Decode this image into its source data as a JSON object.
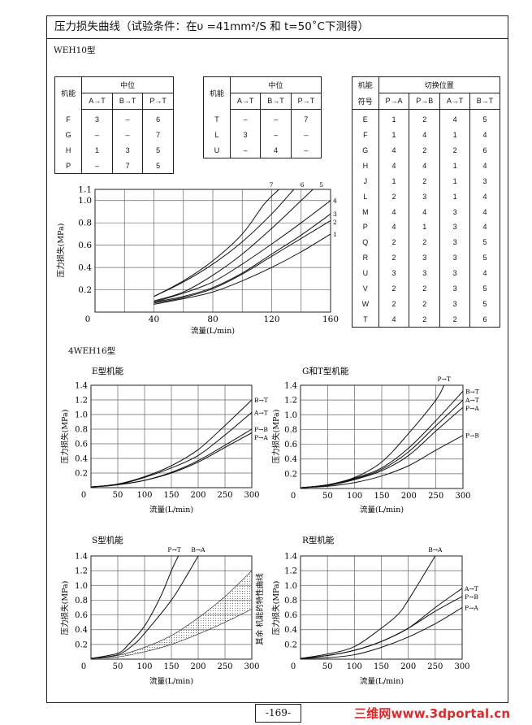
{
  "header": {
    "title": "压力损失曲线（试验条件：在υ =41mm²/S 和 t=50˚C下测得）"
  },
  "sections": {
    "weh10": "WEH10型",
    "weh16": "4WEH16型"
  },
  "table1": {
    "col_function": "机能",
    "col_group": "中位",
    "columns": [
      "A→T",
      "B→T",
      "P→T"
    ],
    "rows": [
      [
        "F",
        "3",
        "–",
        "6"
      ],
      [
        "G",
        "–",
        "–",
        "7"
      ],
      [
        "H",
        "1",
        "3",
        "5"
      ],
      [
        "P",
        "–",
        "7",
        "5"
      ]
    ]
  },
  "table2": {
    "col_function": "机能",
    "col_group": "中位",
    "columns": [
      "A→T",
      "B→T",
      "P→T"
    ],
    "rows": [
      [
        "T",
        "–",
        "–",
        "7"
      ],
      [
        "L",
        "3",
        "–",
        "–"
      ],
      [
        "U",
        "–",
        "4",
        "–"
      ]
    ]
  },
  "table3": {
    "col_function": "机能",
    "col_symbol": "符号",
    "col_group": "切换位置",
    "columns": [
      "P→A",
      "P→B",
      "A→T",
      "B→T"
    ],
    "rows": [
      [
        "E",
        "1",
        "2",
        "4",
        "5"
      ],
      [
        "F",
        "1",
        "4",
        "1",
        "4"
      ],
      [
        "G",
        "4",
        "2",
        "2",
        "6"
      ],
      [
        "H",
        "4",
        "4",
        "1",
        "4"
      ],
      [
        "J",
        "1",
        "2",
        "1",
        "3"
      ],
      [
        "L",
        "2",
        "3",
        "1",
        "4"
      ],
      [
        "M",
        "4",
        "4",
        "3",
        "4"
      ],
      [
        "P",
        "4",
        "1",
        "3",
        "4"
      ],
      [
        "Q",
        "2",
        "2",
        "3",
        "5"
      ],
      [
        "R",
        "2",
        "3",
        "3",
        "5"
      ],
      [
        "U",
        "3",
        "3",
        "3",
        "4"
      ],
      [
        "V",
        "2",
        "2",
        "3",
        "5"
      ],
      [
        "W",
        "2",
        "2",
        "3",
        "5"
      ],
      [
        "T",
        "4",
        "2",
        "2",
        "6"
      ]
    ]
  },
  "chart_data": [
    {
      "id": "weh10",
      "type": "line",
      "title": "",
      "xlabel": "流量(L/min)",
      "ylabel": "压力损失(MPa)",
      "xlim": [
        0,
        160
      ],
      "ylim": [
        0,
        1.1
      ],
      "xticks": [
        0,
        40,
        80,
        120,
        160
      ],
      "xtick_labels": [
        "0",
        "40",
        "80",
        "120",
        "160"
      ],
      "yticks": [
        0.2,
        0.4,
        0.6,
        0.8,
        1.0,
        1.1
      ],
      "ytick_labels": [
        "0.2",
        "0.4",
        "0.6",
        "0.8",
        "1.0",
        "1.1"
      ],
      "xgrid_step": 20,
      "grid": true,
      "series": [
        {
          "name": "1",
          "x": [
            40,
            60,
            80,
            100,
            120,
            140,
            160
          ],
          "y": [
            0.07,
            0.12,
            0.18,
            0.28,
            0.4,
            0.54,
            0.7
          ]
        },
        {
          "name": "2",
          "x": [
            40,
            60,
            80,
            100,
            120,
            140,
            160
          ],
          "y": [
            0.08,
            0.13,
            0.21,
            0.34,
            0.5,
            0.66,
            0.82
          ]
        },
        {
          "name": "3",
          "x": [
            40,
            60,
            80,
            100,
            120,
            140,
            160
          ],
          "y": [
            0.09,
            0.14,
            0.22,
            0.35,
            0.52,
            0.69,
            0.88
          ]
        },
        {
          "name": "4",
          "x": [
            40,
            60,
            80,
            100,
            120,
            140,
            160
          ],
          "y": [
            0.09,
            0.17,
            0.27,
            0.43,
            0.61,
            0.8,
            1.0
          ]
        },
        {
          "name": "5",
          "x": [
            40,
            60,
            80,
            100,
            120,
            140,
            148
          ],
          "y": [
            0.1,
            0.18,
            0.33,
            0.52,
            0.75,
            1.0,
            1.1
          ]
        },
        {
          "name": "6",
          "x": [
            40,
            60,
            80,
            100,
            120,
            135
          ],
          "y": [
            0.14,
            0.27,
            0.43,
            0.63,
            0.88,
            1.1
          ]
        },
        {
          "name": "7",
          "x": [
            40,
            60,
            80,
            100,
            115,
            125
          ],
          "y": [
            0.14,
            0.28,
            0.46,
            0.7,
            0.97,
            1.1
          ]
        }
      ]
    },
    {
      "id": "e",
      "type": "line",
      "title": "E型机能",
      "xlabel": "流量(L/min)",
      "ylabel": "压力损失(MPa)",
      "xlim": [
        0,
        300
      ],
      "ylim": [
        0,
        1.4
      ],
      "xticks": [
        0,
        50,
        100,
        150,
        200,
        250,
        300
      ],
      "xtick_labels": [
        "0",
        "50",
        "100",
        "150",
        "200",
        "250",
        "300"
      ],
      "yticks": [
        0.2,
        0.4,
        0.6,
        0.8,
        1.0,
        1.2,
        1.4
      ],
      "ytick_labels": [
        "0.2",
        "0.4",
        "0.6",
        "0.8",
        "1.0",
        "1.2",
        "1.4"
      ],
      "xgrid_step": 50,
      "grid": true,
      "series": [
        {
          "name": "B→T",
          "x": [
            0,
            50,
            100,
            150,
            200,
            250,
            300
          ],
          "y": [
            0.01,
            0.05,
            0.15,
            0.3,
            0.52,
            0.85,
            1.2
          ]
        },
        {
          "name": "A→T",
          "x": [
            0,
            50,
            100,
            150,
            200,
            250,
            300
          ],
          "y": [
            0.01,
            0.04,
            0.14,
            0.27,
            0.44,
            0.72,
            1.03
          ]
        },
        {
          "name": "P→B",
          "x": [
            0,
            50,
            100,
            150,
            200,
            250,
            300
          ],
          "y": [
            0.01,
            0.04,
            0.1,
            0.21,
            0.37,
            0.58,
            0.8
          ]
        },
        {
          "name": "P→A",
          "x": [
            0,
            50,
            100,
            150,
            200,
            250,
            300
          ],
          "y": [
            0.01,
            0.04,
            0.1,
            0.2,
            0.35,
            0.55,
            0.75
          ]
        }
      ]
    },
    {
      "id": "gt",
      "type": "line",
      "title": "G和T型机能",
      "xlabel": "流量(L/min)",
      "ylabel": "压力损失(MPa)",
      "xlim": [
        0,
        300
      ],
      "ylim": [
        0,
        1.4
      ],
      "xticks": [
        0,
        50,
        100,
        150,
        200,
        250,
        300
      ],
      "xtick_labels": [
        "0",
        "50",
        "100",
        "150",
        "200",
        "250",
        "300"
      ],
      "yticks": [
        0.2,
        0.4,
        0.6,
        0.8,
        1.0,
        1.2,
        1.4
      ],
      "ytick_labels": [
        "0.2",
        "0.4",
        "0.6",
        "0.8",
        "1.0",
        "1.2",
        "1.4"
      ],
      "xgrid_step": 50,
      "grid": true,
      "series": [
        {
          "name": "P→T",
          "x": [
            0,
            50,
            100,
            150,
            200,
            250,
            265
          ],
          "y": [
            0.01,
            0.05,
            0.15,
            0.36,
            0.75,
            1.2,
            1.4
          ]
        },
        {
          "name": "B→T",
          "x": [
            0,
            50,
            100,
            150,
            200,
            250,
            300
          ],
          "y": [
            0.01,
            0.05,
            0.14,
            0.28,
            0.55,
            0.92,
            1.32
          ]
        },
        {
          "name": "A→T",
          "x": [
            0,
            50,
            100,
            150,
            200,
            250,
            300
          ],
          "y": [
            0.01,
            0.05,
            0.13,
            0.26,
            0.5,
            0.85,
            1.2
          ]
        },
        {
          "name": "P→A",
          "x": [
            0,
            50,
            100,
            150,
            200,
            250,
            300
          ],
          "y": [
            0.01,
            0.04,
            0.12,
            0.24,
            0.45,
            0.78,
            1.1
          ]
        },
        {
          "name": "P→B",
          "x": [
            0,
            50,
            100,
            150,
            200,
            250,
            300
          ],
          "y": [
            0.01,
            0.03,
            0.08,
            0.17,
            0.31,
            0.52,
            0.72
          ]
        }
      ]
    },
    {
      "id": "s",
      "type": "line",
      "title": "S型机能",
      "xlabel": "流量(L/min)",
      "ylabel": "压力损失(MPa)",
      "xlim": [
        0,
        300
      ],
      "ylim": [
        0,
        1.4
      ],
      "xticks": [
        0,
        50,
        100,
        150,
        200,
        250,
        300
      ],
      "xtick_labels": [
        "0",
        "50",
        "100",
        "150",
        "200",
        "250",
        "300"
      ],
      "yticks": [
        0.2,
        0.4,
        0.6,
        0.8,
        1.0,
        1.2,
        1.4
      ],
      "ytick_labels": [
        "0.2",
        "0.4",
        "0.6",
        "0.8",
        "1.0",
        "1.2",
        "1.4"
      ],
      "xgrid_step": 50,
      "grid": true,
      "series": [
        {
          "name": "P→T",
          "x": [
            0,
            50,
            70,
            100,
            130,
            150,
            163
          ],
          "y": [
            0.01,
            0.08,
            0.2,
            0.45,
            0.85,
            1.2,
            1.4
          ]
        },
        {
          "name": "B→A",
          "x": [
            0,
            50,
            80,
            100,
            150,
            180,
            200
          ],
          "y": [
            0.01,
            0.06,
            0.2,
            0.35,
            0.8,
            1.15,
            1.4
          ]
        }
      ],
      "band": {
        "label": "其余 机能的特性曲线",
        "x": [
          0,
          50,
          100,
          150,
          200,
          250,
          300
        ],
        "upper": [
          0.01,
          0.05,
          0.16,
          0.32,
          0.56,
          0.85,
          1.2
        ],
        "lower": [
          0.01,
          0.03,
          0.1,
          0.2,
          0.34,
          0.5,
          0.68
        ]
      }
    },
    {
      "id": "r",
      "type": "line",
      "title": "R型机能",
      "xlabel": "流量(L/min)",
      "ylabel": "压力损失(MPa)",
      "xlim": [
        0,
        300
      ],
      "ylim": [
        0,
        1.4
      ],
      "xticks": [
        0,
        50,
        100,
        150,
        200,
        250,
        300
      ],
      "xtick_labels": [
        "0",
        "50",
        "100",
        "150",
        "200",
        "250",
        "300"
      ],
      "yticks": [
        0.2,
        0.4,
        0.6,
        0.8,
        1.0,
        1.2,
        1.4
      ],
      "ytick_labels": [
        "0.2",
        "0.4",
        "0.6",
        "0.8",
        "1.0",
        "1.2",
        "1.4"
      ],
      "xgrid_step": 50,
      "grid": true,
      "series": [
        {
          "name": "B→A",
          "x": [
            0,
            50,
            100,
            150,
            180,
            200,
            250
          ],
          "y": [
            0.01,
            0.07,
            0.17,
            0.42,
            0.6,
            0.8,
            1.4
          ]
        },
        {
          "name": "A→T",
          "x": [
            0,
            50,
            100,
            150,
            200,
            250,
            300
          ],
          "y": [
            0.01,
            0.05,
            0.12,
            0.24,
            0.42,
            0.7,
            0.96
          ]
        },
        {
          "name": "P→B",
          "x": [
            0,
            50,
            100,
            150,
            200,
            250,
            300
          ],
          "y": [
            0.01,
            0.05,
            0.12,
            0.24,
            0.42,
            0.65,
            0.85
          ]
        },
        {
          "name": "P→A",
          "x": [
            0,
            50,
            100,
            150,
            200,
            250,
            300
          ],
          "y": [
            0.01,
            0.02,
            0.06,
            0.16,
            0.3,
            0.48,
            0.7
          ]
        }
      ]
    }
  ],
  "footer": {
    "page_number": "-169-",
    "watermark": "三维网www.3dportal.cn",
    "watermark_color": "#e0282a"
  }
}
